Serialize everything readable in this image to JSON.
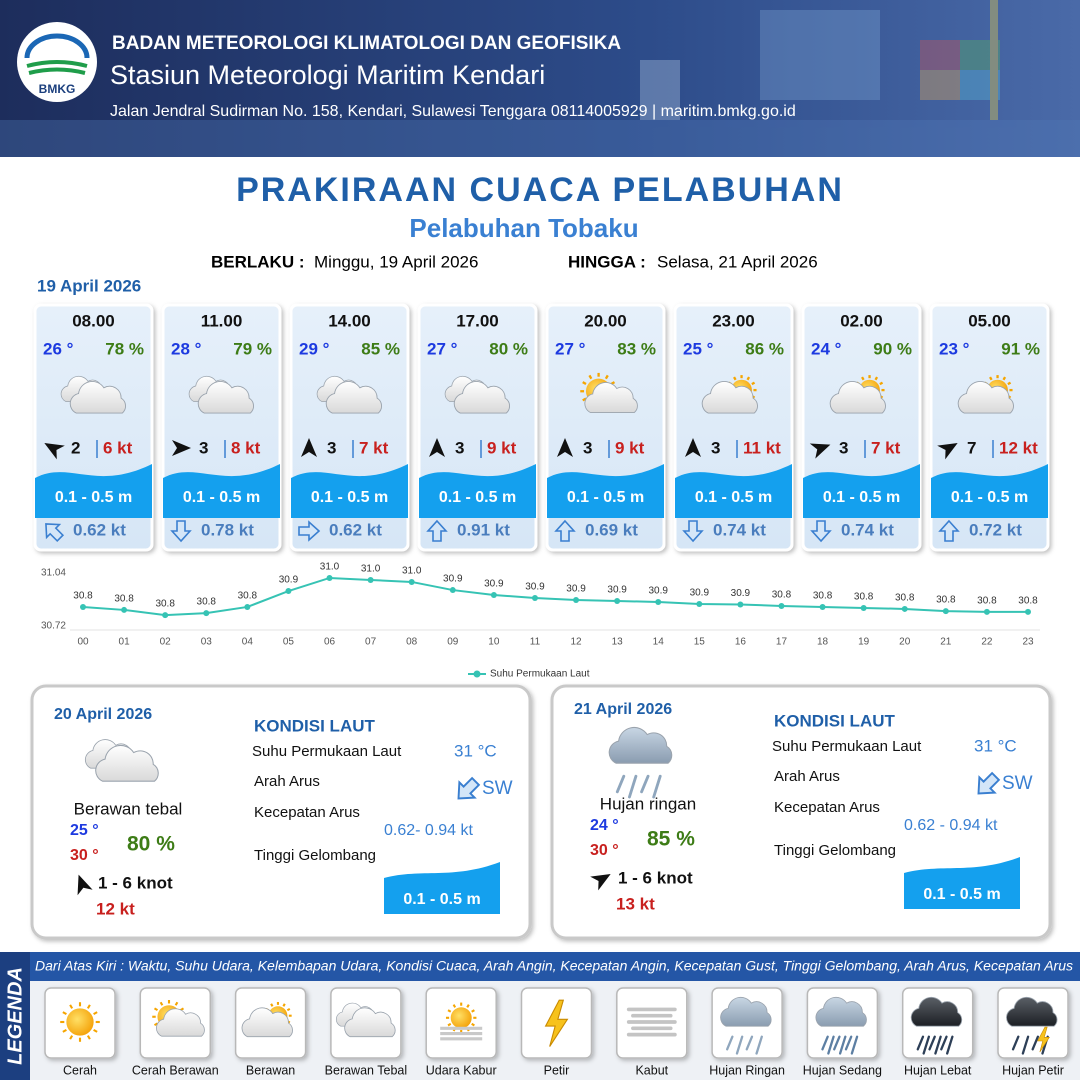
{
  "header": {
    "logo_text": "BMKG",
    "organization": "BADAN METEOROLOGI KLIMATOLOGI DAN GEOFISIKA",
    "station": "Stasiun Meteorologi Maritim Kendari",
    "address": "Jalan Jendral Sudirman No. 158, Kendari, Sulawesi Tenggara  08114005929 | maritim.bmkg.go.id"
  },
  "title": "PRAKIRAAN CUACA PELABUHAN",
  "subtitle": "Pelabuhan Tobaku",
  "validity": {
    "from_label": "BERLAKU :",
    "from": "Minggu, 19 April 2026",
    "to_label": "HINGGA :",
    "to": "Selasa, 21 April 2026"
  },
  "day1": {
    "date": "19 April 2026",
    "forecasts": [
      {
        "time": "08.00",
        "temperature": "26 °",
        "humidity": "78 %",
        "icon": 3,
        "wind_direction": 300,
        "wind_speed": 2,
        "gust": "6 kt",
        "wave": "0.1 - 0.5 m",
        "current_direction": 315,
        "current_speed": "0.62 kt"
      },
      {
        "time": "11.00",
        "temperature": "28 °",
        "humidity": "79 %",
        "icon": 3,
        "wind_direction": 90,
        "wind_speed": 3,
        "gust": "8 kt",
        "wave": "0.1 - 0.5 m",
        "current_direction": 180,
        "current_speed": "0.78 kt"
      },
      {
        "time": "14.00",
        "temperature": "29 °",
        "humidity": "85 %",
        "icon": 3,
        "wind_direction": 0,
        "wind_speed": 3,
        "gust": "7 kt",
        "wave": "0.1 - 0.5 m",
        "current_direction": 90,
        "current_speed": "0.62 kt"
      },
      {
        "time": "17.00",
        "temperature": "27 °",
        "humidity": "80 %",
        "icon": 3,
        "wind_direction": 0,
        "wind_speed": 3,
        "gust": "9 kt",
        "wave": "0.1 - 0.5 m",
        "current_direction": 0,
        "current_speed": "0.91 kt"
      },
      {
        "time": "20.00",
        "temperature": "27 °",
        "humidity": "83 %",
        "icon": 1,
        "wind_direction": 0,
        "wind_speed": 3,
        "gust": "9 kt",
        "wave": "0.1 - 0.5 m",
        "current_direction": 0,
        "current_speed": "0.69 kt"
      },
      {
        "time": "23.00",
        "temperature": "25 °",
        "humidity": "86 %",
        "icon": 2,
        "wind_direction": 0,
        "wind_speed": 3,
        "gust": "11 kt",
        "wave": "0.1 - 0.5 m",
        "current_direction": 180,
        "current_speed": "0.74 kt"
      },
      {
        "time": "02.00",
        "temperature": "24 °",
        "humidity": "90 %",
        "icon": 2,
        "wind_direction": 70,
        "wind_speed": 3,
        "gust": "7 kt",
        "wave": "0.1 - 0.5 m",
        "current_direction": 180,
        "current_speed": "0.74 kt"
      },
      {
        "time": "05.00",
        "temperature": "23 °",
        "humidity": "91 %",
        "icon": 2,
        "wind_direction": 60,
        "wind_speed": 7,
        "gust": "12 kt",
        "wave": "0.1 - 0.5 m",
        "current_direction": 0,
        "current_speed": "0.72 kt"
      }
    ]
  },
  "chart_data": {
    "type": "line",
    "categories": [
      "00",
      "01",
      "02",
      "03",
      "04",
      "05",
      "06",
      "07",
      "08",
      "09",
      "10",
      "11",
      "12",
      "13",
      "14",
      "15",
      "16",
      "17",
      "18",
      "19",
      "20",
      "21",
      "22",
      "23"
    ],
    "series": [
      {
        "name": "Suhu Permukaan Laut",
        "color": "#36c3b4",
        "values": [
          30.835,
          30.817,
          30.786,
          30.798,
          30.835,
          30.931,
          31.01,
          30.998,
          30.986,
          30.937,
          30.907,
          30.889,
          30.877,
          30.871,
          30.865,
          30.853,
          30.85,
          30.841,
          30.835,
          30.829,
          30.823,
          30.81,
          30.805,
          30.805
        ],
        "value_labels": [
          "30.8",
          "30.8",
          "30.8",
          "30.8",
          "30.8",
          "30.9",
          "31.0",
          "31.0",
          "31.0",
          "30.9",
          "30.9",
          "30.9",
          "30.9",
          "30.9",
          "30.9",
          "30.9",
          "30.9",
          "30.8",
          "30.8",
          "30.8",
          "30.8",
          "30.8",
          "30.8",
          "30.8"
        ]
      }
    ],
    "ylim": [
      30.72,
      31.04
    ],
    "yticks": [
      30.72,
      31.04
    ],
    "grid": false
  },
  "days": [
    {
      "date": "20 April 2026",
      "icon": 3,
      "condition": "Berawan tebal",
      "temp_min": "25 °",
      "temp_max": "30 °",
      "humidity": "80 %",
      "wind_direction": 340,
      "wind": "1  - 6 knot",
      "gust": "12 kt",
      "sea_title": "KONDISI LAUT",
      "sst_label": "Suhu Permukaan Laut",
      "sst": "31 °C",
      "current_dir_label": "Arah Arus",
      "current_direction": 225,
      "current_dir": "SW",
      "current_speed_label": "Kecepatan Arus",
      "current_speed": "0.62- 0.94 kt",
      "wave_label": "Tinggi Gelombang",
      "wave": "0.1 - 0.5 m"
    },
    {
      "date": "21 April 2026",
      "icon": 7,
      "condition": "Hujan ringan",
      "temp_min": "24 °",
      "temp_max": "30 °",
      "humidity": "85 %",
      "wind_direction": 60,
      "wind": "1  - 6 knot",
      "gust": "13 kt",
      "sea_title": "KONDISI LAUT",
      "sst_label": "Suhu Permukaan Laut",
      "sst": "31 °C",
      "current_dir_label": "Arah Arus",
      "current_direction": 225,
      "current_dir": "SW",
      "current_speed_label": "Kecepatan Arus",
      "current_speed": "0.62 - 0.94 kt",
      "wave_label": "Tinggi Gelombang",
      "wave": "0.1 - 0.5 m"
    }
  ],
  "legend": {
    "title": "LEGENDA",
    "description": "Dari Atas Kiri : Waktu, Suhu Udara, Kelembapan Udara, Kondisi Cuaca, Arah Angin, Kecepatan Angin, Kecepatan Gust, Tinggi Gelombang, Arah Arus, Kecepatan Arus",
    "items": [
      "Cerah",
      "Cerah Berawan",
      "Berawan",
      "Berawan Tebal",
      "Udara Kabur",
      "Petir",
      "Kabut",
      "Hujan Ringan",
      "Hujan Sedang",
      "Hujan Lebat",
      "Hujan Petir"
    ]
  }
}
